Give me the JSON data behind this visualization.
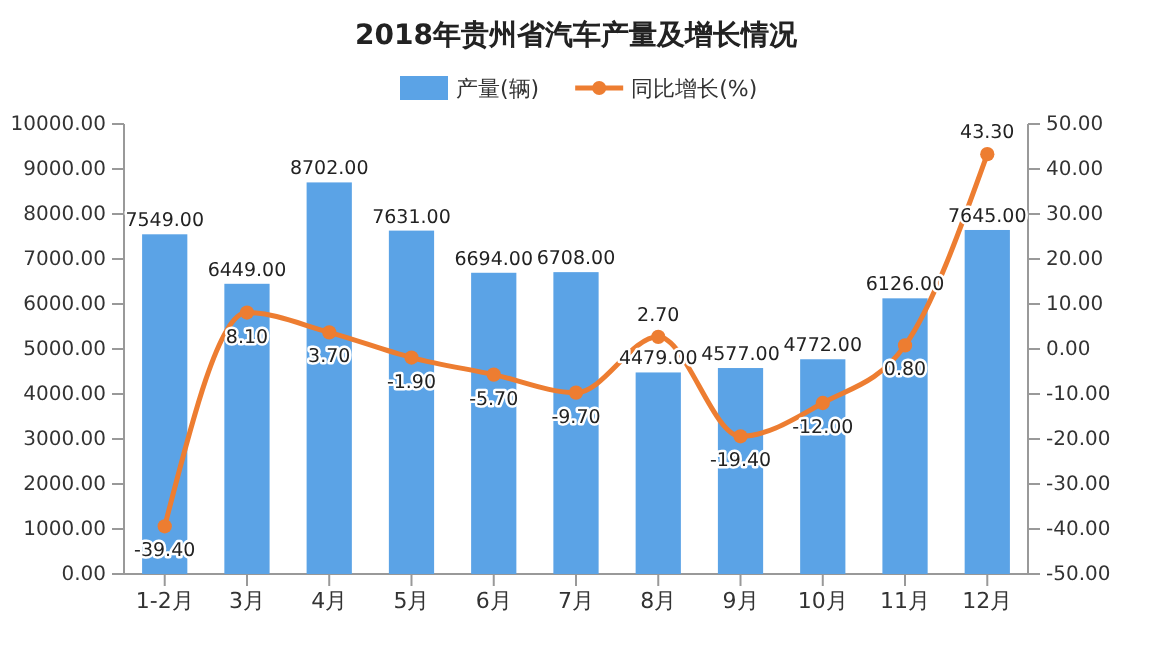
{
  "chart_data": {
    "type": "bar",
    "title": "2018年贵州省汽车产量及增长情况",
    "categories": [
      "1-2月",
      "3月",
      "4月",
      "5月",
      "6月",
      "7月",
      "8月",
      "9月",
      "10月",
      "11月",
      "12月"
    ],
    "series": [
      {
        "name": "产量(辆)",
        "color": "#5ba3e6",
        "values": [
          7549,
          6449,
          8702,
          7631,
          6694,
          6708,
          4479,
          4577,
          4772,
          6126,
          7645
        ],
        "value_labels": [
          "7549.00",
          "6449.00",
          "8702.00",
          "7631.00",
          "6694.00",
          "6708.00",
          "4479.00",
          "4577.00",
          "4772.00",
          "6126.00",
          "7645.00"
        ]
      },
      {
        "name": "同比增长(%)",
        "type": "line",
        "axis": "y2",
        "color": "#ed7d31",
        "marker": "circle",
        "values": [
          -39.4,
          8.1,
          3.7,
          -1.9,
          -5.7,
          -9.7,
          2.7,
          -19.4,
          -12,
          0.8,
          43.3
        ],
        "value_labels": [
          "-39.40",
          "8.10",
          "3.70",
          "-1.90",
          "-5.70",
          "-9.70",
          "2.70",
          "-19.40",
          "-12.00",
          "0.80",
          "43.30"
        ]
      }
    ],
    "ylim": [
      0,
      10000
    ],
    "yticks": [
      {
        "value": 0,
        "label": "0.00"
      },
      {
        "value": 1000,
        "label": "1000.00"
      },
      {
        "value": 2000,
        "label": "2000.00"
      },
      {
        "value": 3000,
        "label": "3000.00"
      },
      {
        "value": 4000,
        "label": "4000.00"
      },
      {
        "value": 5000,
        "label": "5000.00"
      },
      {
        "value": 6000,
        "label": "6000.00"
      },
      {
        "value": 7000,
        "label": "7000.00"
      },
      {
        "value": 8000,
        "label": "8000.00"
      },
      {
        "value": 9000,
        "label": "9000.00"
      },
      {
        "value": 10000,
        "label": "10000.00"
      }
    ],
    "y2lim": [
      -50,
      50
    ],
    "y2ticks": [
      {
        "value": -50,
        "label": "-50.00"
      },
      {
        "value": -40,
        "label": "-40.00"
      },
      {
        "value": -30,
        "label": "-30.00"
      },
      {
        "value": -20,
        "label": "-20.00"
      },
      {
        "value": -10,
        "label": "-10.00"
      },
      {
        "value": 0,
        "label": "0.00"
      },
      {
        "value": 10,
        "label": "10.00"
      },
      {
        "value": 20,
        "label": "20.00"
      },
      {
        "value": 30,
        "label": "30.00"
      },
      {
        "value": 40,
        "label": "40.00"
      },
      {
        "value": 50,
        "label": "50.00"
      }
    ],
    "legend": "top"
  }
}
